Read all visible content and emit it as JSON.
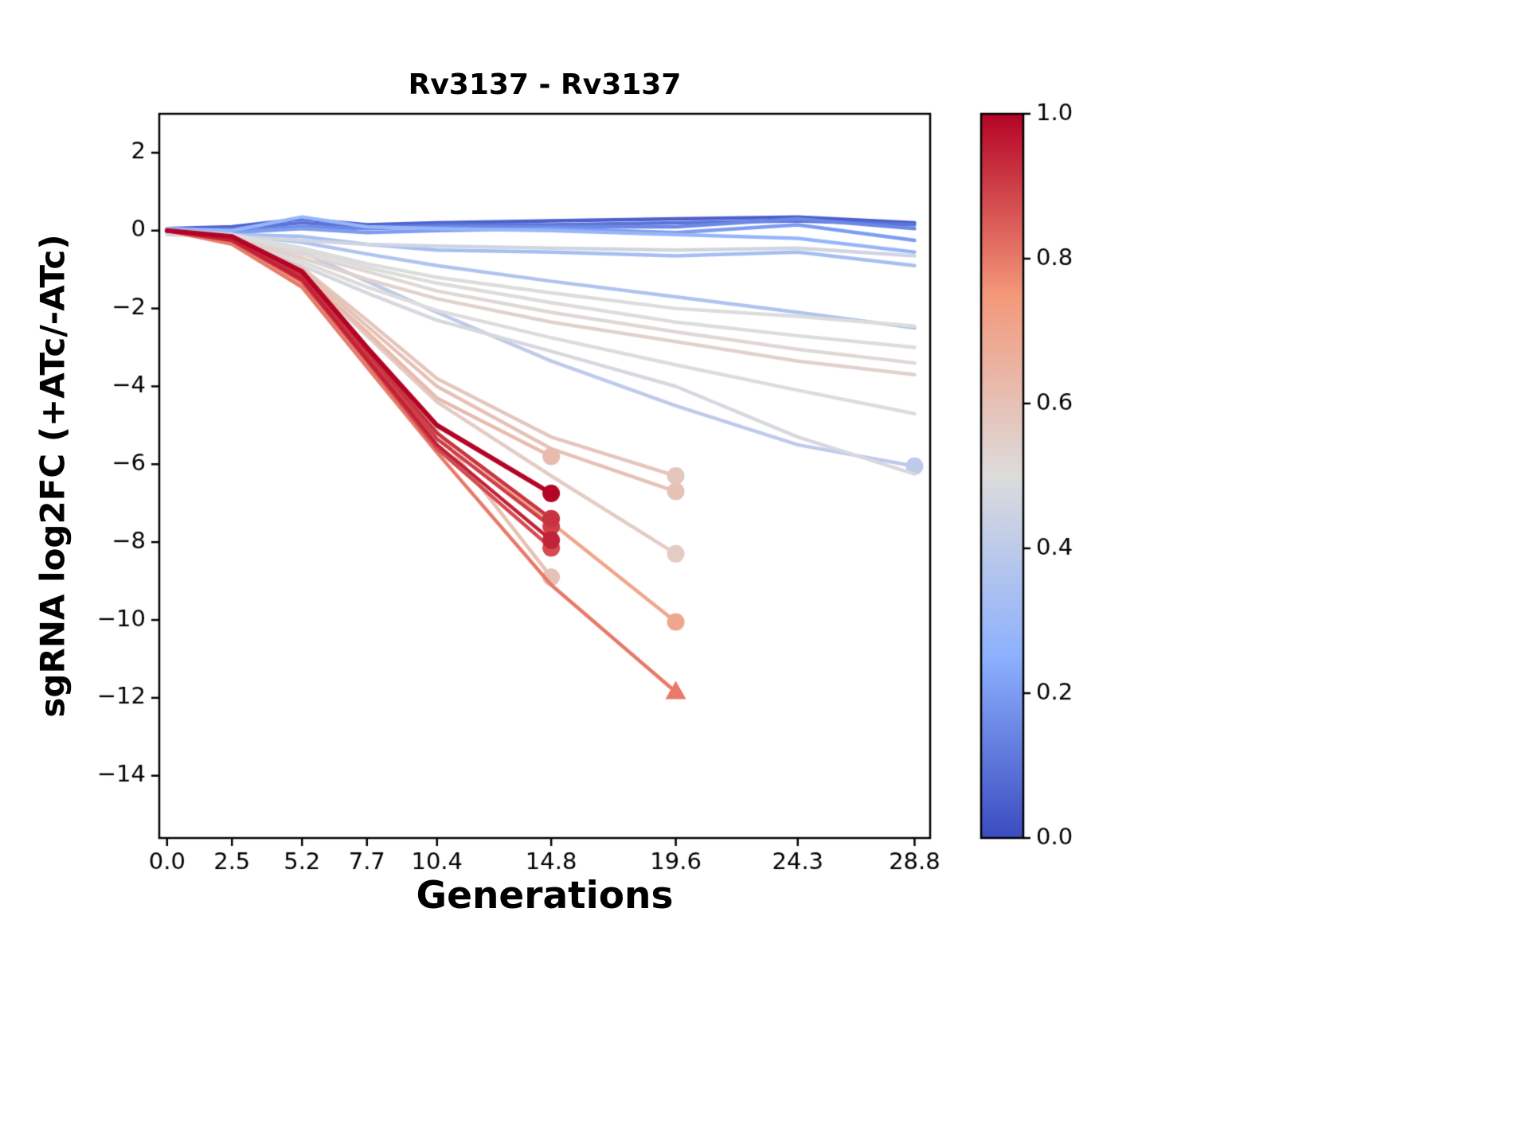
{
  "chart_data": {
    "type": "line",
    "title": "Rv3137 - Rv3137",
    "xlabel": "Generations",
    "ylabel": "sgRNA log2FC (+ATc/-ATc)",
    "xlim": [
      -0.3,
      29.4
    ],
    "ylim": [
      -15.6,
      3.0
    ],
    "grid": false,
    "xticks": {
      "values": [
        0.0,
        2.5,
        5.2,
        7.7,
        10.4,
        14.8,
        19.6,
        24.3,
        28.8
      ],
      "labels": [
        "0.0",
        "2.5",
        "5.2",
        "7.7",
        "10.4",
        "14.8",
        "19.6",
        "24.3",
        "28.8"
      ]
    },
    "yticks": {
      "values": [
        2,
        0,
        -2,
        -4,
        -6,
        -8,
        -10,
        -12,
        -14
      ],
      "labels": [
        "2",
        "0",
        "−2",
        "−4",
        "−6",
        "−8",
        "−10",
        "−12",
        "−14"
      ]
    },
    "colormap": {
      "name": "coolwarm",
      "anchors": [
        {
          "t": 0.0,
          "color": "#3b4cc0"
        },
        {
          "t": 0.25,
          "color": "#8db0fe"
        },
        {
          "t": 0.5,
          "color": "#dddcdc"
        },
        {
          "t": 0.75,
          "color": "#f4987a"
        },
        {
          "t": 1.0,
          "color": "#b40426"
        }
      ]
    },
    "colorbar": {
      "min": 0.0,
      "max": 1.0,
      "position": "right",
      "tick_values": [
        0.0,
        0.2,
        0.4,
        0.6,
        0.8,
        1.0
      ],
      "tick_labels": [
        "0.0",
        "0.2",
        "0.4",
        "0.6",
        "0.8",
        "1.0"
      ]
    },
    "series": [
      {
        "c": 0.05,
        "marker": null,
        "x": [
          0,
          2.5,
          5.2,
          7.7,
          10.4,
          14.8,
          19.6,
          24.3,
          28.8
        ],
        "y": [
          0.05,
          0.1,
          0.3,
          0.15,
          0.2,
          0.25,
          0.3,
          0.35,
          0.2
        ]
      },
      {
        "c": 0.1,
        "marker": null,
        "x": [
          0,
          2.5,
          5.2,
          7.7,
          10.4,
          14.8,
          19.6,
          24.3,
          28.8
        ],
        "y": [
          0.0,
          0.05,
          0.2,
          0.1,
          0.15,
          0.15,
          0.2,
          0.25,
          0.15
        ]
      },
      {
        "c": 0.15,
        "marker": null,
        "x": [
          0,
          2.5,
          5.2,
          7.7,
          10.4,
          14.8,
          19.6,
          24.3,
          28.8
        ],
        "y": [
          -0.05,
          0.0,
          0.1,
          0.05,
          0.1,
          0.1,
          0.1,
          0.3,
          0.05
        ]
      },
      {
        "c": 0.2,
        "marker": null,
        "x": [
          0,
          2.5,
          5.2,
          7.7,
          10.4,
          14.8,
          19.6,
          24.3,
          28.8
        ],
        "y": [
          0.0,
          -0.05,
          0.05,
          -0.05,
          0.0,
          0.05,
          -0.05,
          0.15,
          -0.25
        ]
      },
      {
        "c": 0.28,
        "marker": null,
        "x": [
          0,
          2.5,
          5.2,
          7.7,
          10.4,
          14.8,
          19.6,
          24.3,
          28.8
        ],
        "y": [
          0.05,
          0.0,
          0.35,
          0.1,
          0.05,
          0.0,
          -0.1,
          -0.2,
          -0.55
        ]
      },
      {
        "c": 0.33,
        "marker": null,
        "x": [
          0,
          2.5,
          5.2,
          7.7,
          10.4,
          14.8,
          19.6,
          24.3,
          28.8
        ],
        "y": [
          0.0,
          -0.1,
          -0.15,
          -0.35,
          -0.5,
          -0.55,
          -0.65,
          -0.55,
          -0.9
        ]
      },
      {
        "c": 0.36,
        "marker": null,
        "x": [
          0,
          2.5,
          5.2,
          7.7,
          10.4,
          14.8,
          19.6,
          24.3,
          28.8
        ],
        "y": [
          -0.05,
          -0.1,
          -0.3,
          -0.6,
          -0.9,
          -1.3,
          -1.7,
          -2.1,
          -2.5
        ]
      },
      {
        "c": 0.4,
        "marker": "o",
        "x": [
          0,
          2.5,
          5.2,
          7.7,
          10.4,
          14.8,
          19.6,
          24.3,
          28.8
        ],
        "y": [
          0.0,
          -0.15,
          -0.55,
          -1.3,
          -2.1,
          -3.35,
          -4.5,
          -5.5,
          -6.05
        ]
      },
      {
        "c": 0.46,
        "marker": null,
        "x": [
          0,
          2.5,
          5.2,
          7.7,
          10.4,
          14.8,
          19.6,
          24.3,
          28.8
        ],
        "y": [
          -0.1,
          -0.15,
          -0.25,
          -0.35,
          -0.4,
          -0.45,
          -0.5,
          -0.45,
          -0.65
        ]
      },
      {
        "c": 0.5,
        "marker": null,
        "x": [
          0,
          2.5,
          5.2,
          7.7,
          10.4,
          14.8,
          19.6,
          24.3,
          28.8
        ],
        "y": [
          0.0,
          -0.1,
          -0.45,
          -0.85,
          -1.2,
          -1.6,
          -2.0,
          -2.2,
          -2.45
        ]
      },
      {
        "c": 0.5,
        "marker": null,
        "x": [
          0,
          2.5,
          5.2,
          7.7,
          10.4,
          14.8,
          19.6,
          24.3,
          28.8
        ],
        "y": [
          0.0,
          -0.15,
          -0.5,
          -0.95,
          -1.35,
          -1.85,
          -2.35,
          -2.7,
          -3.0
        ]
      },
      {
        "c": 0.52,
        "marker": null,
        "x": [
          0,
          2.5,
          5.2,
          7.7,
          10.4,
          14.8,
          19.6,
          24.3,
          28.8
        ],
        "y": [
          0.0,
          -0.2,
          -0.6,
          -1.05,
          -1.55,
          -2.1,
          -2.6,
          -3.05,
          -3.4
        ]
      },
      {
        "c": 0.54,
        "marker": null,
        "x": [
          0,
          2.5,
          5.2,
          7.7,
          10.4,
          14.8,
          19.6,
          24.3,
          28.8
        ],
        "y": [
          0.0,
          -0.2,
          -0.7,
          -1.25,
          -1.75,
          -2.35,
          -2.85,
          -3.35,
          -3.7
        ]
      },
      {
        "c": 0.5,
        "marker": null,
        "x": [
          0,
          2.5,
          5.2,
          7.7,
          10.4,
          14.8,
          19.6,
          24.3,
          28.8
        ],
        "y": [
          0.0,
          -0.25,
          -0.8,
          -1.45,
          -2.05,
          -2.75,
          -3.45,
          -4.1,
          -4.7
        ]
      },
      {
        "c": 0.48,
        "marker": null,
        "x": [
          0,
          2.5,
          5.2,
          7.7,
          10.4,
          14.8,
          19.6,
          24.3,
          28.8
        ],
        "y": [
          0.0,
          -0.3,
          -0.9,
          -1.6,
          -2.3,
          -3.1,
          -4.0,
          -5.3,
          -6.25
        ]
      },
      {
        "c": 0.62,
        "marker": "o",
        "x": [
          0,
          2.5,
          5.2,
          7.7,
          10.4,
          14.8
        ],
        "y": [
          0.0,
          -0.3,
          -1.1,
          -2.6,
          -4.3,
          -5.8
        ]
      },
      {
        "c": 1.0,
        "marker": "o",
        "lw": 6,
        "x": [
          0,
          2.5,
          5.2,
          7.7,
          10.4,
          14.8
        ],
        "y": [
          0.0,
          -0.15,
          -1.05,
          -3.0,
          -5.0,
          -6.75
        ]
      },
      {
        "c": 0.92,
        "marker": "o",
        "x": [
          0,
          2.5,
          5.2,
          7.7,
          10.4,
          14.8
        ],
        "y": [
          0.0,
          -0.2,
          -1.15,
          -3.1,
          -5.2,
          -7.4
        ]
      },
      {
        "c": 0.9,
        "marker": "o",
        "x": [
          0,
          2.5,
          5.2,
          7.7,
          10.4,
          14.8
        ],
        "y": [
          0.0,
          -0.2,
          -1.2,
          -3.2,
          -5.35,
          -7.6
        ]
      },
      {
        "c": 0.95,
        "marker": "o",
        "x": [
          0,
          2.5,
          5.2,
          7.7,
          10.4,
          14.8
        ],
        "y": [
          0.0,
          -0.25,
          -1.25,
          -3.3,
          -5.5,
          -7.95
        ]
      },
      {
        "c": 0.88,
        "marker": "o",
        "x": [
          0,
          2.5,
          5.2,
          7.7,
          10.4,
          14.8
        ],
        "y": [
          0.0,
          -0.25,
          -1.3,
          -3.35,
          -5.6,
          -8.15
        ]
      },
      {
        "c": 0.6,
        "marker": "o",
        "x": [
          0,
          2.5,
          5.2,
          7.7,
          10.4,
          14.8
        ],
        "y": [
          0.0,
          -0.3,
          -1.2,
          -3.0,
          -5.15,
          -8.9
        ]
      },
      {
        "c": 0.58,
        "marker": "o",
        "x": [
          0,
          2.5,
          5.2,
          7.7,
          10.4,
          14.8,
          19.6
        ],
        "y": [
          0.0,
          -0.2,
          -0.95,
          -2.3,
          -3.8,
          -5.3,
          -6.3
        ]
      },
      {
        "c": 0.6,
        "marker": "o",
        "x": [
          0,
          2.5,
          5.2,
          7.7,
          10.4,
          14.8,
          19.6
        ],
        "y": [
          0.0,
          -0.25,
          -1.0,
          -2.45,
          -4.0,
          -5.6,
          -6.7
        ]
      },
      {
        "c": 0.56,
        "marker": "o",
        "x": [
          0,
          2.5,
          5.2,
          7.7,
          10.4,
          14.8,
          19.6
        ],
        "y": [
          0.0,
          -0.3,
          -1.1,
          -2.7,
          -4.4,
          -6.3,
          -8.3
        ]
      },
      {
        "c": 0.7,
        "marker": "o",
        "x": [
          0,
          2.5,
          5.2,
          7.7,
          10.4,
          14.8,
          19.6
        ],
        "y": [
          0.0,
          -0.3,
          -1.35,
          -3.2,
          -5.2,
          -7.5,
          -10.05
        ]
      },
      {
        "c": 0.8,
        "marker": "^",
        "x": [
          0,
          2.5,
          5.2,
          7.7,
          10.4,
          14.8,
          19.6
        ],
        "y": [
          0.0,
          -0.35,
          -1.45,
          -3.5,
          -5.7,
          -9.1,
          -11.85
        ]
      }
    ]
  }
}
